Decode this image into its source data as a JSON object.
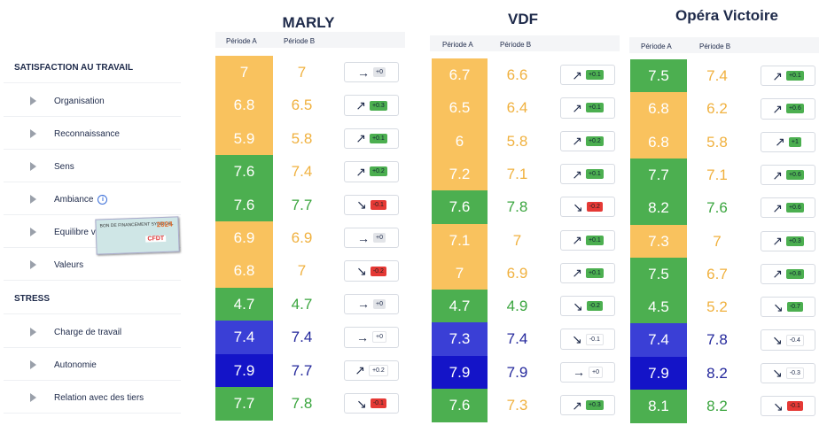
{
  "sidebar": {
    "sections": [
      {
        "title": "SATISFACTION AU TRAVAIL",
        "items": [
          {
            "label": "Organisation",
            "info": false
          },
          {
            "label": "Reconnaissance",
            "info": false
          },
          {
            "label": "Sens",
            "info": false
          },
          {
            "label": "Ambiance",
            "info": true
          },
          {
            "label": "Equilibre vie pro/perso",
            "info": true
          },
          {
            "label": "Valeurs",
            "info": false
          }
        ]
      },
      {
        "title": "STRESS",
        "items": [
          {
            "label": "Charge de travail",
            "info": false
          },
          {
            "label": "Autonomie",
            "info": false
          },
          {
            "label": "Relation avec des tiers",
            "info": false
          }
        ]
      }
    ],
    "stamp": {
      "line1": "BON DE FINANCEMENT SYNDICAL",
      "year": "2024",
      "logo": "CFDT"
    }
  },
  "colors": {
    "green": "#4caf50",
    "orange": "#f9c25e",
    "blue": "#3a3fd6",
    "darkblue": "#1414c8",
    "orange_text": "#f0b13f",
    "green_text": "#3aa53e",
    "blue_text": "#24289c"
  },
  "sites": [
    {
      "name": "MARLY",
      "col_a": "Période A",
      "col_b": "Période B",
      "rows": [
        {
          "a": "7",
          "b": "7",
          "arrow": "→",
          "delta": "+0",
          "badge": "grey",
          "c": "orange"
        },
        {
          "a": "6.8",
          "b": "6.5",
          "arrow": "↗",
          "delta": "+0.3",
          "badge": "green",
          "c": "orange"
        },
        {
          "a": "5.9",
          "b": "5.8",
          "arrow": "↗",
          "delta": "+0.1",
          "badge": "green",
          "c": "orange"
        },
        {
          "a": "7.6",
          "b": "7.4",
          "arrow": "↗",
          "delta": "+0.2",
          "badge": "green",
          "c": "green",
          "cb": "orange"
        },
        {
          "a": "7.6",
          "b": "7.7",
          "arrow": "↘",
          "delta": "-0.1",
          "badge": "red",
          "c": "green"
        },
        {
          "a": "6.9",
          "b": "6.9",
          "arrow": "→",
          "delta": "+0",
          "badge": "grey",
          "c": "orange"
        },
        {
          "a": "6.8",
          "b": "7",
          "arrow": "↘",
          "delta": "-0.2",
          "badge": "red",
          "c": "orange"
        },
        {
          "a": "4.7",
          "b": "4.7",
          "arrow": "→",
          "delta": "+0",
          "badge": "grey",
          "c": "green"
        },
        {
          "a": "7.4",
          "b": "7.4",
          "arrow": "→",
          "delta": "+0",
          "badge": "white",
          "c": "blue"
        },
        {
          "a": "7.9",
          "b": "7.7",
          "arrow": "↗",
          "delta": "+0.2",
          "badge": "white",
          "c": "darkblue"
        },
        {
          "a": "7.7",
          "b": "7.8",
          "arrow": "↘",
          "delta": "-0.1",
          "badge": "red",
          "c": "green"
        }
      ]
    },
    {
      "name": "VDF",
      "col_a": "Période A",
      "col_b": "Période B",
      "rows": [
        {
          "a": "6.7",
          "b": "6.6",
          "arrow": "↗",
          "delta": "+0.1",
          "badge": "green",
          "c": "orange"
        },
        {
          "a": "6.5",
          "b": "6.4",
          "arrow": "↗",
          "delta": "+0.1",
          "badge": "green",
          "c": "orange"
        },
        {
          "a": "6",
          "b": "5.8",
          "arrow": "↗",
          "delta": "+0.2",
          "badge": "green",
          "c": "orange"
        },
        {
          "a": "7.2",
          "b": "7.1",
          "arrow": "↗",
          "delta": "+0.1",
          "badge": "green",
          "c": "orange"
        },
        {
          "a": "7.6",
          "b": "7.8",
          "arrow": "↘",
          "delta": "-0.2",
          "badge": "red",
          "c": "green"
        },
        {
          "a": "7.1",
          "b": "7",
          "arrow": "↗",
          "delta": "+0.1",
          "badge": "green",
          "c": "orange"
        },
        {
          "a": "7",
          "b": "6.9",
          "arrow": "↗",
          "delta": "+0.1",
          "badge": "green",
          "c": "orange"
        },
        {
          "a": "4.7",
          "b": "4.9",
          "arrow": "↘",
          "delta": "-0.2",
          "badge": "green",
          "c": "green"
        },
        {
          "a": "7.3",
          "b": "7.4",
          "arrow": "↘",
          "delta": "-0.1",
          "badge": "white",
          "c": "blue"
        },
        {
          "a": "7.9",
          "b": "7.9",
          "arrow": "→",
          "delta": "+0",
          "badge": "white",
          "c": "darkblue"
        },
        {
          "a": "7.6",
          "b": "7.3",
          "arrow": "↗",
          "delta": "+0.3",
          "badge": "green",
          "c": "green",
          "cb": "orange"
        }
      ]
    },
    {
      "name": "Opéra Victoire",
      "col_a": "Période A",
      "col_b": "Période B",
      "rows": [
        {
          "a": "7.5",
          "b": "7.4",
          "arrow": "↗",
          "delta": "+0.1",
          "badge": "green",
          "c": "green",
          "cb": "orange"
        },
        {
          "a": "6.8",
          "b": "6.2",
          "arrow": "↗",
          "delta": "+0.6",
          "badge": "green",
          "c": "orange"
        },
        {
          "a": "6.8",
          "b": "5.8",
          "arrow": "↗",
          "delta": "+1",
          "badge": "green",
          "c": "orange"
        },
        {
          "a": "7.7",
          "b": "7.1",
          "arrow": "↗",
          "delta": "+0.6",
          "badge": "green",
          "c": "green",
          "cb": "orange"
        },
        {
          "a": "8.2",
          "b": "7.6",
          "arrow": "↗",
          "delta": "+0.6",
          "badge": "green",
          "c": "green"
        },
        {
          "a": "7.3",
          "b": "7",
          "arrow": "↗",
          "delta": "+0.3",
          "badge": "green",
          "c": "orange"
        },
        {
          "a": "7.5",
          "b": "6.7",
          "arrow": "↗",
          "delta": "+0.8",
          "badge": "green",
          "c": "green",
          "cb": "orange"
        },
        {
          "a": "4.5",
          "b": "5.2",
          "arrow": "↘",
          "delta": "-0.7",
          "badge": "green",
          "c": "green",
          "cb": "orange"
        },
        {
          "a": "7.4",
          "b": "7.8",
          "arrow": "↘",
          "delta": "-0.4",
          "badge": "white",
          "c": "blue"
        },
        {
          "a": "7.9",
          "b": "8.2",
          "arrow": "↘",
          "delta": "-0.3",
          "badge": "white",
          "c": "darkblue"
        },
        {
          "a": "8.1",
          "b": "8.2",
          "arrow": "↘",
          "delta": "-0.1",
          "badge": "red",
          "c": "green"
        }
      ]
    }
  ]
}
